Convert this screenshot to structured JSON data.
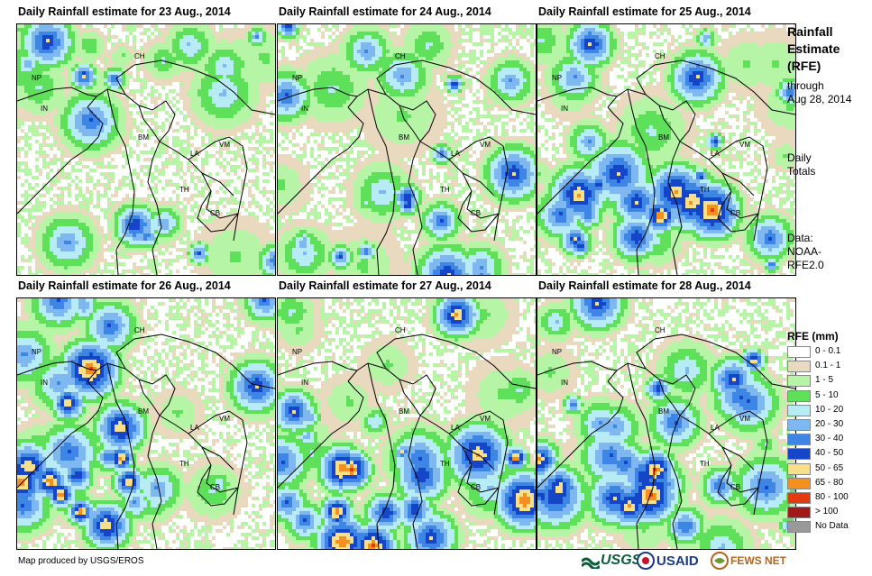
{
  "panels": [
    {
      "title": "Daily Rainfall estimate for 23 Aug., 2014"
    },
    {
      "title": "Daily Rainfall estimate for 24 Aug., 2014"
    },
    {
      "title": "Daily Rainfall estimate for 25 Aug., 2014"
    },
    {
      "title": "Daily Rainfall estimate for 26 Aug., 2014"
    },
    {
      "title": "Daily Rainfall estimate for 27 Aug., 2014"
    },
    {
      "title": "Daily Rainfall estimate for 28 Aug., 2014"
    }
  ],
  "country_labels": [
    "CH",
    "NP",
    "IN",
    "BM",
    "LA",
    "VM",
    "TH",
    "CB"
  ],
  "sidebar": {
    "title_lines": [
      "Rainfall",
      "Estimate",
      "(RFE)"
    ],
    "through_lines": [
      "through",
      "Aug 28, 2014"
    ],
    "daily_lines": [
      "Daily",
      "Totals"
    ],
    "data_lines": [
      "Data:",
      "NOAA-",
      "RFE2.0"
    ]
  },
  "legend": {
    "title": "RFE (mm)",
    "items": [
      {
        "label": "0 - 0.1",
        "color": "#ffffff"
      },
      {
        "label": "0.1 - 1",
        "color": "#e9d9bf"
      },
      {
        "label": "1 - 5",
        "color": "#b7f5a6"
      },
      {
        "label": "5 - 10",
        "color": "#5fe05a"
      },
      {
        "label": "10 - 20",
        "color": "#b7ecf7"
      },
      {
        "label": "20 - 30",
        "color": "#7fb8f0"
      },
      {
        "label": "30 - 40",
        "color": "#3d86e6"
      },
      {
        "label": "40 - 50",
        "color": "#1546c8"
      },
      {
        "label": "50 - 65",
        "color": "#f8e08a"
      },
      {
        "label": "65 - 80",
        "color": "#f49020"
      },
      {
        "label": "80 - 100",
        "color": "#e43a10"
      },
      {
        "label": "> 100",
        "color": "#a01818"
      },
      {
        "label": "No Data",
        "color": "#999999"
      }
    ]
  },
  "credit": "Map produced by USGS/EROS",
  "logos": {
    "usgs": "USGS",
    "usaid": "USAID",
    "fews": "FEWS NET"
  }
}
